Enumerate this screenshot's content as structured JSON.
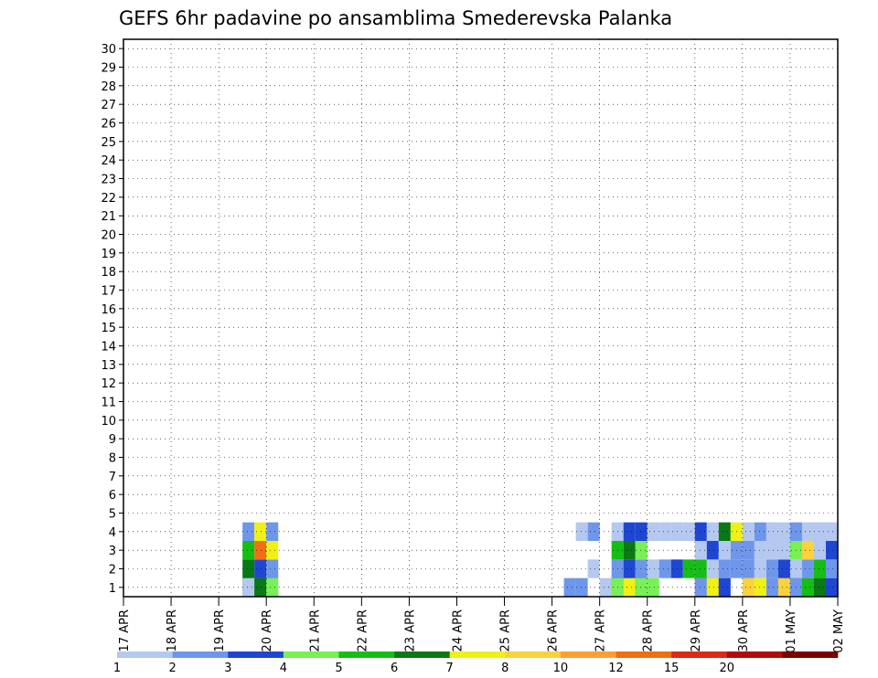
{
  "chart_data": {
    "type": "heatmap",
    "title": "GEFS 6hr padavine po ansamblima Smederevska Palanka",
    "x_tick_labels": [
      "17 APR",
      "18 APR",
      "19 APR",
      "20 APR",
      "21 APR",
      "22 APR",
      "23 APR",
      "24 APR",
      "25 APR",
      "26 APR",
      "27 APR",
      "28 APR",
      "29 APR",
      "30 APR",
      "01 MAY",
      "02 MAY"
    ],
    "y_tick_labels": [
      "1",
      "2",
      "3",
      "4",
      "5",
      "6",
      "7",
      "8",
      "9",
      "10",
      "11",
      "12",
      "13",
      "14",
      "15",
      "16",
      "17",
      "18",
      "19",
      "20",
      "21",
      "22",
      "23",
      "24",
      "25",
      "26",
      "27",
      "28",
      "29",
      "30"
    ],
    "x_range": [
      "17 APR 00",
      "02 MAY 00"
    ],
    "x_step_hours": 6,
    "y_range": [
      1,
      30
    ],
    "grid": "dotted",
    "colorbar": {
      "boundary_labels": [
        "1",
        "2",
        "3",
        "4",
        "5",
        "6",
        "7",
        "8",
        "10",
        "12",
        "15",
        "20"
      ],
      "colors": [
        "#b4c8f0",
        "#6e96eb",
        "#1e46d2",
        "#78f056",
        "#14be14",
        "#0a7814",
        "#f0f014",
        "#fad23c",
        "#faa032",
        "#f06e14",
        "#dc2814",
        "#b40a0a",
        "#780000"
      ]
    },
    "cells": [
      {
        "m": 1,
        "c": [
          [
            10,
            4
          ],
          [
            11,
            4
          ],
          [
            12,
            1
          ],
          [
            37,
            1
          ],
          [
            38,
            1
          ],
          [
            41,
            2
          ],
          [
            42,
            1
          ],
          [
            43,
            2
          ],
          [
            44,
            3
          ],
          [
            48,
            1
          ],
          [
            49,
            1
          ],
          [
            52,
            7
          ],
          [
            53,
            6
          ],
          [
            54,
            1
          ],
          [
            55,
            9
          ],
          [
            56,
            2
          ],
          [
            57,
            3
          ],
          [
            58,
            0
          ],
          [
            59,
            2
          ],
          [
            60,
            0
          ],
          [
            61,
            1
          ],
          [
            65,
            6
          ],
          [
            66,
            0
          ],
          [
            68,
            2
          ],
          [
            69,
            0
          ],
          [
            71,
            2
          ],
          [
            72,
            0
          ],
          [
            73,
            2
          ],
          [
            74,
            0
          ],
          [
            75,
            1
          ],
          [
            76,
            0
          ],
          [
            77,
            0
          ],
          [
            78,
            0
          ],
          [
            79,
            0
          ]
        ]
      },
      {
        "m": 1,
        "c": [
          [
            10,
            0
          ],
          [
            11,
            5
          ],
          [
            12,
            3
          ],
          [
            40,
            0
          ],
          [
            41,
            3
          ],
          [
            42,
            6
          ],
          [
            43,
            3
          ],
          [
            48,
            1
          ],
          [
            49,
            6
          ],
          [
            50,
            2
          ],
          [
            55,
            7
          ],
          [
            56,
            1
          ],
          [
            57,
            4
          ],
          [
            58,
            5
          ],
          [
            60,
            5
          ],
          [
            61,
            0
          ],
          [
            62,
            0
          ],
          [
            63,
            4
          ],
          [
            65,
            0
          ],
          [
            66,
            1
          ],
          [
            67,
            0
          ],
          [
            68,
            0
          ],
          [
            69,
            0
          ],
          [
            70,
            0
          ],
          [
            71,
            0
          ],
          [
            72,
            0
          ],
          [
            73,
            0
          ],
          [
            74,
            0
          ],
          [
            75,
            2
          ],
          [
            76,
            0
          ],
          [
            77,
            0
          ],
          [
            78,
            0
          ],
          [
            79,
            0
          ]
        ]
      },
      {
        "m": 2,
        "c": [
          [
            10,
            5
          ],
          [
            11,
            2
          ],
          [
            12,
            1
          ],
          [
            39,
            0
          ],
          [
            41,
            1
          ],
          [
            42,
            2
          ],
          [
            43,
            1
          ],
          [
            44,
            0
          ],
          [
            45,
            1
          ],
          [
            46,
            2
          ],
          [
            47,
            4
          ],
          [
            48,
            4
          ],
          [
            49,
            0
          ],
          [
            50,
            1
          ],
          [
            51,
            1
          ],
          [
            52,
            1
          ],
          [
            53,
            0
          ],
          [
            54,
            1
          ],
          [
            55,
            2
          ],
          [
            56,
            0
          ],
          [
            57,
            1
          ],
          [
            58,
            4
          ],
          [
            59,
            1
          ],
          [
            60,
            0
          ],
          [
            61,
            2
          ],
          [
            62,
            0
          ],
          [
            63,
            1
          ],
          [
            64,
            2
          ],
          [
            65,
            6
          ],
          [
            66,
            1
          ],
          [
            67,
            0
          ],
          [
            68,
            2
          ],
          [
            69,
            3
          ],
          [
            70,
            0
          ],
          [
            71,
            3
          ],
          [
            72,
            0
          ],
          [
            73,
            0
          ],
          [
            74,
            0
          ],
          [
            75,
            0
          ],
          [
            76,
            0
          ],
          [
            77,
            2
          ],
          [
            78,
            1
          ],
          [
            79,
            0
          ]
        ]
      },
      {
        "m": 3,
        "c": [
          [
            10,
            4
          ],
          [
            11,
            9
          ],
          [
            12,
            6
          ],
          [
            41,
            4
          ],
          [
            42,
            5
          ],
          [
            43,
            3
          ],
          [
            48,
            0
          ],
          [
            49,
            2
          ],
          [
            50,
            0
          ],
          [
            51,
            1
          ],
          [
            52,
            1
          ],
          [
            53,
            0
          ],
          [
            54,
            0
          ],
          [
            55,
            0
          ],
          [
            56,
            3
          ],
          [
            57,
            7
          ],
          [
            58,
            0
          ],
          [
            59,
            2
          ],
          [
            60,
            0
          ],
          [
            61,
            0
          ],
          [
            62,
            0
          ],
          [
            63,
            2
          ],
          [
            64,
            0
          ],
          [
            65,
            0
          ],
          [
            66,
            2
          ],
          [
            67,
            3
          ],
          [
            68,
            6
          ],
          [
            69,
            0
          ],
          [
            70,
            0
          ],
          [
            71,
            0
          ],
          [
            72,
            0
          ],
          [
            73,
            1
          ],
          [
            74,
            0
          ],
          [
            75,
            0
          ],
          [
            76,
            0
          ],
          [
            77,
            4
          ],
          [
            78,
            3
          ],
          [
            79,
            0
          ]
        ]
      },
      {
        "m": 4,
        "c": [
          [
            10,
            1
          ],
          [
            11,
            6
          ],
          [
            12,
            1
          ],
          [
            38,
            0
          ],
          [
            39,
            1
          ],
          [
            41,
            0
          ],
          [
            42,
            2
          ],
          [
            43,
            2
          ],
          [
            44,
            0
          ],
          [
            45,
            0
          ],
          [
            46,
            0
          ],
          [
            47,
            0
          ],
          [
            48,
            2
          ],
          [
            49,
            0
          ],
          [
            50,
            5
          ],
          [
            51,
            6
          ],
          [
            52,
            0
          ],
          [
            53,
            1
          ],
          [
            54,
            0
          ],
          [
            55,
            0
          ],
          [
            56,
            1
          ],
          [
            57,
            0
          ],
          [
            58,
            0
          ],
          [
            59,
            0
          ],
          [
            60,
            0
          ],
          [
            61,
            1
          ],
          [
            62,
            0
          ],
          [
            63,
            0
          ],
          [
            64,
            0
          ],
          [
            65,
            1
          ],
          [
            66,
            1
          ],
          [
            67,
            1
          ],
          [
            68,
            0
          ],
          [
            69,
            0
          ],
          [
            70,
            1
          ],
          [
            71,
            0
          ],
          [
            72,
            0
          ],
          [
            73,
            2
          ],
          [
            74,
            0
          ],
          [
            75,
            0
          ],
          [
            76,
            0
          ],
          [
            77,
            4
          ],
          [
            78,
            1
          ],
          [
            79,
            2
          ]
        ]
      }
    ]
  },
  "annotations": [
    "x axis: 6-hourly steps starting 17 APR 00 UTC",
    "y axis: ensemble member 1-30"
  ]
}
